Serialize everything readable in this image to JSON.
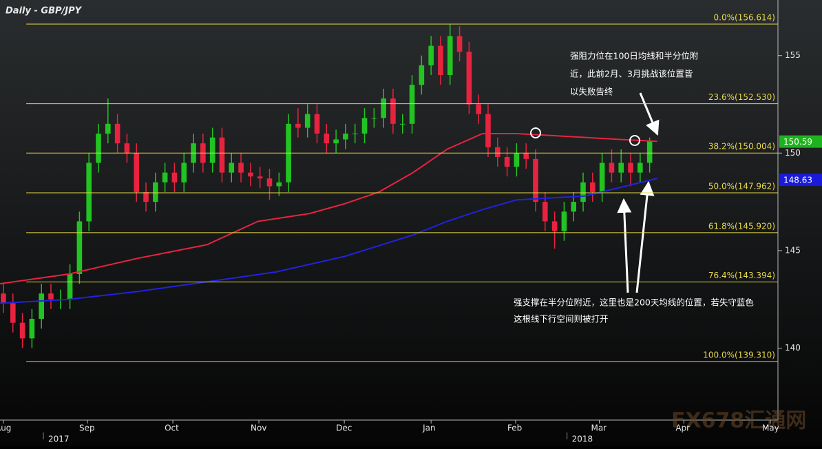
{
  "chart_data": {
    "type": "candlestick",
    "title": "Daily - GBP/JPY",
    "ylim": [
      136.31,
      157.85
    ],
    "yticks": [
      140,
      145,
      150,
      155
    ],
    "xlim": [
      -0.36,
      81.5
    ],
    "xticks": [
      {
        "value": 0,
        "label": "Aug"
      },
      {
        "value": 8.84,
        "label": "Sep"
      },
      {
        "value": 17.83,
        "label": "Oct"
      },
      {
        "value": 26.88,
        "label": "Nov"
      },
      {
        "value": 35.87,
        "label": "Dec"
      },
      {
        "value": 45,
        "label": "Jan"
      },
      {
        "value": 53.9,
        "label": "Feb"
      },
      {
        "value": 62.7,
        "label": "Mar"
      },
      {
        "value": 71.6,
        "label": "Apr"
      },
      {
        "value": 80.7,
        "label": "May"
      }
    ],
    "year_labels": [
      {
        "value": 5.8,
        "label": "2017"
      },
      {
        "value": 60.9,
        "label": "2018"
      }
    ],
    "up_color": "#22c422",
    "down_color": "#e8233f",
    "open": [
      142.8,
      142.3,
      141.3,
      140.5,
      141.5,
      142.8,
      142.5,
      142.5,
      143.8,
      146.5,
      149.5,
      151,
      151.5,
      150.5,
      150,
      148,
      147.5,
      148.5,
      149,
      148.5,
      149.5,
      150.5,
      149.5,
      150.8,
      149,
      149.5,
      149,
      148.8,
      148.7,
      148.3,
      148.5,
      151.5,
      151.3,
      152,
      151,
      150.5,
      150.7,
      151,
      151,
      151.8,
      151.8,
      152.8,
      151.5,
      151.5,
      153.5,
      154.5,
      155.5,
      154,
      156,
      155.2,
      152.5,
      152,
      150.3,
      149.8,
      149.3,
      150,
      149.7,
      147.5,
      146.5,
      146,
      147,
      147.5,
      148.5,
      148,
      149.5,
      149,
      149.5,
      149,
      149.5
    ],
    "high": [
      143.3,
      142.8,
      141.8,
      142.0,
      143.3,
      143.3,
      143.0,
      144.3,
      147.0,
      150.0,
      151.5,
      152.8,
      152.0,
      151.0,
      150.5,
      148.5,
      149.0,
      149.5,
      149.5,
      150.0,
      151.0,
      151.0,
      151.3,
      151.3,
      150.0,
      150.0,
      149.5,
      149.3,
      149.2,
      149.0,
      152.0,
      152.3,
      152.5,
      152.5,
      151.5,
      151.2,
      151.5,
      151.5,
      152.3,
      152.3,
      153.3,
      153.3,
      152.0,
      154.0,
      155.0,
      156.0,
      156.0,
      156.6,
      156.5,
      155.7,
      153.0,
      152.5,
      150.8,
      150.3,
      150.5,
      150.5,
      150.2,
      148.0,
      147.0,
      147.5,
      148.0,
      149.0,
      149.0,
      150.0,
      150.2,
      150.2,
      150.0,
      150.0,
      150.8
    ],
    "low": [
      141.8,
      140.8,
      140.0,
      140.0,
      141.0,
      142.0,
      142.0,
      142.0,
      143.3,
      146.0,
      149.0,
      150.5,
      150.0,
      149.5,
      147.5,
      147.0,
      147.0,
      148.0,
      148.0,
      148.0,
      149.0,
      149.0,
      149.0,
      148.5,
      148.5,
      148.5,
      148.3,
      148.2,
      147.6,
      147.8,
      148.0,
      150.8,
      150.8,
      150.5,
      150.0,
      150.0,
      150.2,
      150.5,
      150.5,
      151.3,
      151.3,
      151.0,
      151.0,
      151.0,
      153.0,
      154.0,
      153.5,
      153.5,
      154.7,
      152.0,
      151.5,
      149.8,
      149.3,
      148.8,
      148.8,
      149.2,
      147.0,
      146.0,
      145.1,
      145.5,
      146.5,
      147.0,
      147.5,
      147.5,
      148.5,
      148.5,
      148.3,
      148.5,
      149.0
    ],
    "close": [
      142.3,
      141.3,
      140.5,
      141.5,
      142.8,
      142.5,
      142.5,
      143.8,
      146.5,
      149.5,
      151,
      151.5,
      150.5,
      150,
      148,
      147.5,
      148.5,
      149,
      148.5,
      149.5,
      150.5,
      149.5,
      150.8,
      149,
      149.5,
      149,
      148.8,
      148.7,
      148.3,
      148.5,
      151.5,
      151.3,
      152,
      151,
      150.5,
      150.7,
      151,
      151,
      151.8,
      151.8,
      152.8,
      151.5,
      151.5,
      153.5,
      154.5,
      155.5,
      154,
      156,
      155.2,
      152.5,
      152,
      150.3,
      149.8,
      149.3,
      150,
      149.7,
      147.5,
      146.5,
      146,
      147,
      147.5,
      148.5,
      148,
      149.5,
      149,
      149.5,
      149,
      149.5,
      150.6
    ],
    "series": [
      {
        "color": "#e8233f",
        "x": [
          -0.36,
          6.9,
          14.1,
          21.4,
          26.8,
          32.2,
          35.9,
          39.5,
          43.1,
          46.7,
          50.4,
          54.0,
          57.6,
          64.9,
          68.8
        ],
        "values": [
          143.3,
          143.8,
          144.6,
          145.3,
          146.5,
          146.9,
          147.4,
          148.0,
          149.0,
          150.2,
          151.0,
          151.0,
          150.9,
          150.7,
          150.6
        ]
      },
      {
        "color": "#2222e0",
        "x": [
          -0.36,
          6.9,
          14.1,
          21.4,
          28.6,
          35.9,
          43.1,
          46.7,
          50.4,
          54.0,
          61.2,
          68.8
        ],
        "values": [
          142.3,
          142.5,
          142.9,
          143.4,
          143.9,
          144.7,
          145.8,
          146.5,
          147.1,
          147.6,
          147.8,
          148.7
        ]
      }
    ],
    "fib_start": 2.4,
    "fib_color": "#e6d84a",
    "levels": [
      {
        "value": 156.614,
        "label": "0.0%(156.614)"
      },
      {
        "value": 152.53,
        "label": "23.6%(152.530)"
      },
      {
        "value": 150.004,
        "label": "38.2%(150.004)"
      },
      {
        "value": 147.962,
        "label": "50.0%(147.962)"
      },
      {
        "value": 145.92,
        "label": "61.8%(145.920)"
      },
      {
        "value": 143.394,
        "label": "76.4%(143.394)"
      },
      {
        "value": 139.31,
        "label": "100.0%(139.310)"
      }
    ],
    "price_tags": [
      {
        "value": 150.59,
        "color": "#1db31d"
      },
      {
        "value": 148.63,
        "color": "#1a1adc"
      }
    ],
    "annotations": [
      {
        "lines": [
          "强阻力位在100日均线和半分位附",
          "近，此前2月、3月挑战该位置皆",
          "以失败告终"
        ]
      },
      {
        "lines": [
          "强支撑在半分位附近，这里也是200天均线的位置，若失守蓝色",
          "这根线下行空间则被打开"
        ]
      }
    ],
    "watermark": "FX678汇通网"
  }
}
